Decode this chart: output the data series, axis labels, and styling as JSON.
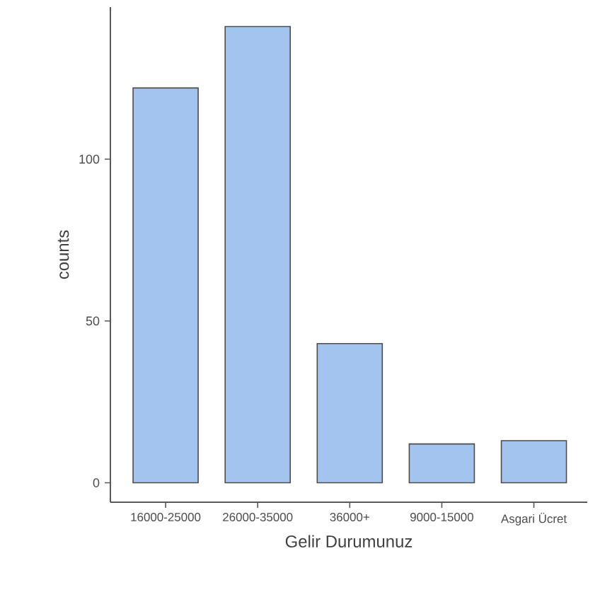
{
  "chart_data": {
    "type": "bar",
    "xlabel": "Gelir Durumunuz",
    "ylabel": "counts",
    "categories": [
      "16000-25000",
      "26000-35000",
      "36000+",
      "9000-15000",
      "Asgari Ücret"
    ],
    "values": [
      122,
      141,
      43,
      12,
      13
    ],
    "color": "#a4c4f0",
    "ylim": [
      -6,
      147
    ],
    "yticks": [
      0,
      50,
      100
    ],
    "grid": false
  }
}
